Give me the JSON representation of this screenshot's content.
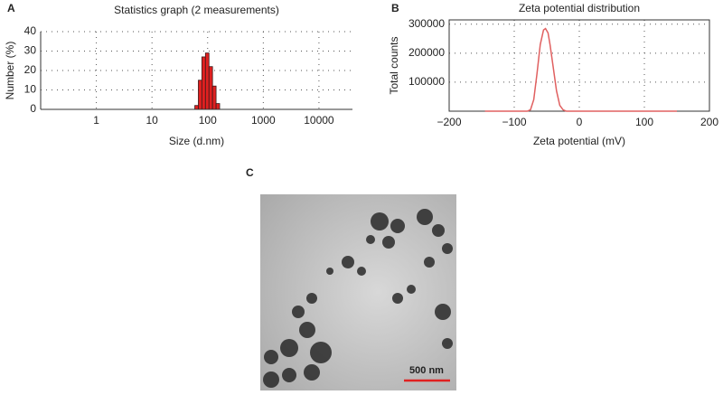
{
  "panels": [
    "A",
    "B",
    "C"
  ],
  "image": {
    "scale_bar": "500 nm"
  },
  "chart_data": [
    {
      "type": "histogram",
      "title": "Statistics graph (2 measurements)",
      "x_label": "Size (d.nm)",
      "y_label": "Number (%)",
      "bins": [
        58.8,
        68.1,
        78.8,
        91.3,
        105.7,
        122.4,
        141.8,
        164.2
      ],
      "values": [
        2,
        15,
        27,
        29,
        22,
        12,
        3
      ],
      "color": "#e02020",
      "xscale": "log",
      "xlim": [
        0.1,
        40000
      ],
      "xticks": [
        1,
        10,
        100,
        1000,
        10000
      ],
      "ylim": [
        0,
        40
      ],
      "yticks": [
        0,
        10,
        20,
        30,
        40
      ],
      "grid": true
    },
    {
      "type": "line",
      "title": "Zeta potential distribution",
      "x_label": "Zeta potential (mV)",
      "y_label": "Total counts",
      "x": [
        -145,
        -80,
        -75,
        -70,
        -65,
        -60,
        -55,
        -52,
        -48,
        -45,
        -40,
        -35,
        -30,
        -25,
        -20,
        150
      ],
      "series": [
        {
          "name": "Total counts",
          "color": "#e06060",
          "values": [
            0,
            0,
            5000,
            40000,
            130000,
            230000,
            280000,
            285000,
            270000,
            230000,
            150000,
            70000,
            20000,
            5000,
            0,
            0
          ]
        }
      ],
      "xlim": [
        -200,
        200
      ],
      "xticks": [
        {
          "value": -200,
          "label": "−200"
        },
        {
          "value": -100,
          "label": "−100"
        },
        0,
        100,
        200
      ],
      "ylim": [
        0,
        315000
      ],
      "yticks": [
        100000,
        200000,
        300000
      ],
      "grid": true
    }
  ]
}
